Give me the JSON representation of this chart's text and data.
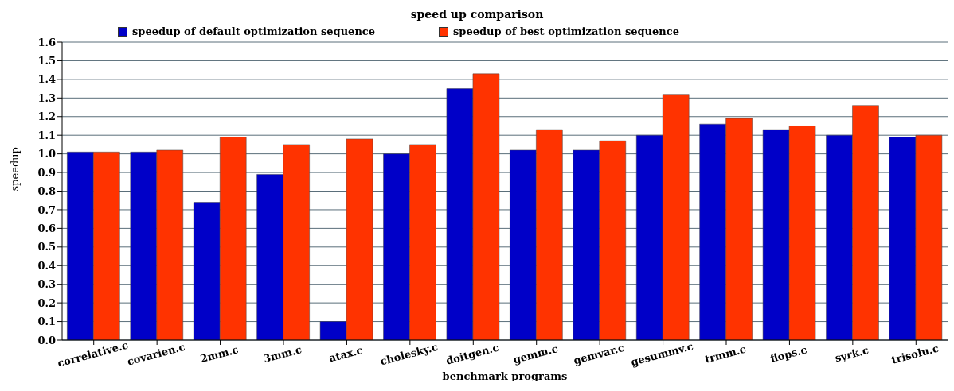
{
  "chart_data": {
    "type": "bar",
    "title": "speed up comparison",
    "xlabel": "benchmark programs",
    "ylabel": "speedup",
    "categories": [
      "correlative.c",
      "covarien.c",
      "2mm.c",
      "3mm.c",
      "atax.c",
      "cholesky.c",
      "doitgen.c",
      "gemm.c",
      "gemvar.c",
      "gesummv.c",
      "trmm.c",
      "flops.c",
      "syrk.c",
      "trisolu.c"
    ],
    "series": [
      {
        "name": "speedup of default optimization sequence",
        "color": "#0000c8",
        "values": [
          1.01,
          1.01,
          0.74,
          0.89,
          0.1,
          1.0,
          1.35,
          1.02,
          1.02,
          1.1,
          1.16,
          1.13,
          1.1,
          1.09
        ]
      },
      {
        "name": "speedup of best optimization sequence",
        "color": "#ff3300",
        "values": [
          1.01,
          1.02,
          1.09,
          1.05,
          1.08,
          1.05,
          1.43,
          1.13,
          1.07,
          1.32,
          1.19,
          1.15,
          1.26,
          1.1
        ]
      }
    ],
    "ylim": [
      0,
      1.6
    ],
    "yticks": [
      {
        "value": 0,
        "label": "0.0"
      },
      0.1,
      0.2,
      0.3,
      0.4,
      0.5,
      0.6,
      0.7,
      0.8,
      0.9,
      {
        "value": 1,
        "label": "1.0"
      },
      1.1,
      1.2,
      1.3,
      1.4,
      1.5,
      1.6
    ],
    "grid": "y",
    "legend": "top left"
  }
}
